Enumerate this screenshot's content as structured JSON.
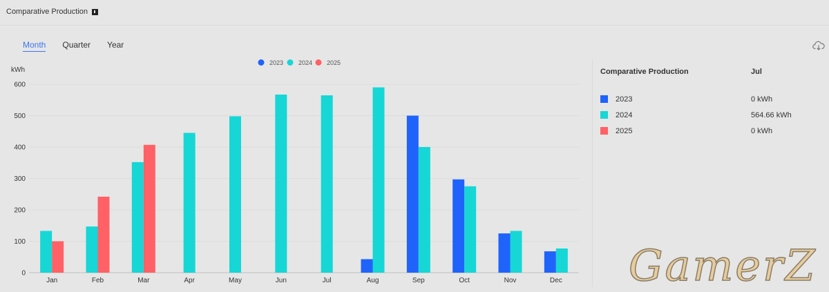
{
  "header": {
    "title": "Comparative Production"
  },
  "tabs": [
    {
      "label": "Month",
      "active": true
    },
    {
      "label": "Quarter",
      "active": false
    },
    {
      "label": "Year",
      "active": false
    }
  ],
  "chart_data": {
    "type": "bar",
    "ylabel": "kWh",
    "ylim": [
      0,
      600
    ],
    "yticks": [
      0,
      100,
      200,
      300,
      400,
      500,
      600
    ],
    "legend_position": "top-center",
    "categories": [
      "Jan",
      "Feb",
      "Mar",
      "Apr",
      "May",
      "Jun",
      "Jul",
      "Aug",
      "Sep",
      "Oct",
      "Nov",
      "Dec"
    ],
    "series": [
      {
        "name": "2023",
        "color": "#1f63fb",
        "values": [
          0,
          0,
          0,
          0,
          0,
          0,
          0,
          43,
          500,
          297,
          125,
          68
        ]
      },
      {
        "name": "2024",
        "color": "#17d6d6",
        "values": [
          133,
          147,
          352,
          445,
          498,
          567,
          564.66,
          590,
          400,
          275,
          133,
          77
        ]
      },
      {
        "name": "2025",
        "color": "#ff6166",
        "values": [
          100,
          242,
          407,
          0,
          0,
          0,
          0,
          0,
          0,
          0,
          0,
          0
        ]
      }
    ]
  },
  "panel": {
    "title": "Comparative Production",
    "month": "Jul",
    "rows": [
      {
        "year": "2023",
        "value": "0 kWh",
        "color": "#1f63fb"
      },
      {
        "year": "2024",
        "value": "564.66 kWh",
        "color": "#17d6d6"
      },
      {
        "year": "2025",
        "value": "0 kWh",
        "color": "#ff6166"
      }
    ]
  },
  "watermark": "GamerZ"
}
